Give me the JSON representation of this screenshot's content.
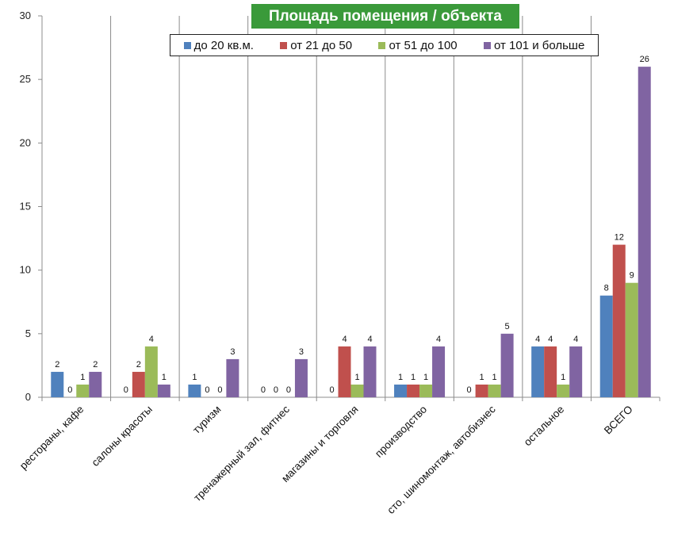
{
  "chart_data": {
    "type": "bar",
    "title": "Площадь помещения / объекта",
    "categories": [
      "рестораны, кафе",
      "салоны красоты",
      "туризм",
      "тренажерный зал, фитнес",
      "магазины и торговля",
      "производство",
      "сто, шиномонтаж, автобизнес",
      "остальное",
      "ВСЕГО"
    ],
    "series": [
      {
        "name": "до 20 кв.м.",
        "color": "#4f81bd",
        "values": [
          2,
          0,
          1,
          0,
          0,
          1,
          0,
          4,
          8
        ]
      },
      {
        "name": "от 21 до 50",
        "color": "#c0504d",
        "values": [
          0,
          2,
          0,
          0,
          4,
          1,
          1,
          4,
          12
        ]
      },
      {
        "name": "от 51 до 100",
        "color": "#9bbb59",
        "values": [
          1,
          4,
          0,
          0,
          1,
          1,
          1,
          1,
          9
        ]
      },
      {
        "name": "от 101 и больше",
        "color": "#8064a2",
        "values": [
          2,
          1,
          3,
          3,
          4,
          4,
          5,
          4,
          26
        ]
      }
    ],
    "ylim": [
      0,
      30
    ],
    "yticks": [
      0,
      5,
      10,
      15,
      20,
      25,
      30
    ],
    "legend_position": "top",
    "grid": "vertical category separators"
  }
}
